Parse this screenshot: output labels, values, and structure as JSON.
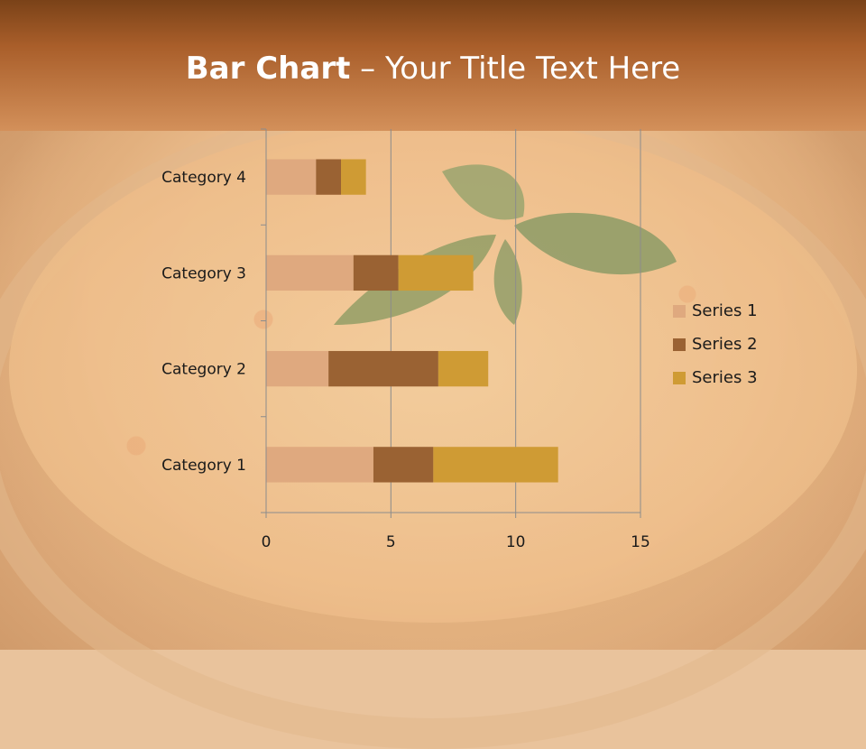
{
  "slide": {
    "title_bold": "Bar Chart",
    "title_rest": " – Your Title Text Here"
  },
  "colors": {
    "series1": "#dfa97f",
    "series2": "#9a6233",
    "series3": "#cf9b34",
    "gridline": "#8c8c8c",
    "header_top": "#7a4218",
    "header_bottom": "#d3905a"
  },
  "chart_data": {
    "type": "bar",
    "orientation": "horizontal",
    "stacked": true,
    "categories": [
      "Category 1",
      "Category 2",
      "Category 3",
      "Category 4"
    ],
    "series": [
      {
        "name": "Series 1",
        "values": [
          4.3,
          2.5,
          3.5,
          2
        ]
      },
      {
        "name": "Series 2",
        "values": [
          2.4,
          4.4,
          1.8,
          1
        ]
      },
      {
        "name": "Series 3",
        "values": [
          5,
          2,
          3,
          1
        ]
      }
    ],
    "xlim": [
      0,
      15
    ],
    "xticks": [
      "0",
      "5",
      "10",
      "15"
    ],
    "grid": true,
    "legend": "right"
  }
}
